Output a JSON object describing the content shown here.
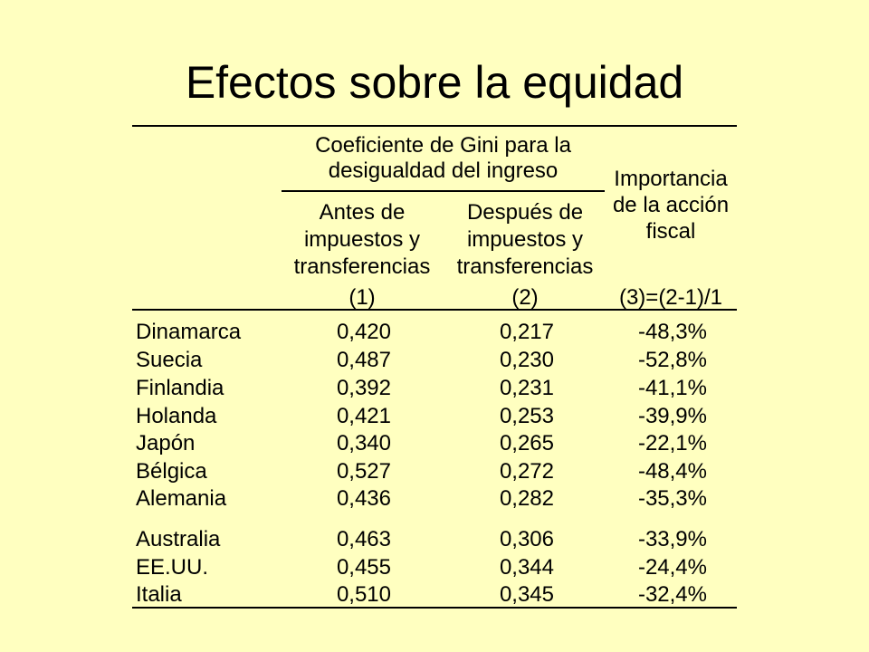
{
  "title": "Efectos sobre la equidad",
  "header": {
    "group_line1": "Coeficiente de Gini para la",
    "group_line2": "desigualdad del ingreso",
    "col1": [
      "Antes de",
      "impuestos y",
      "transferencias"
    ],
    "col2": [
      "Después de",
      "impuestos y",
      "transferencias"
    ],
    "col3": [
      "Importancia",
      "de la acción",
      "fiscal"
    ],
    "col1_num": "(1)",
    "col2_num": "(2)",
    "col3_num": "(3)=(2-1)/1"
  },
  "rows": [
    {
      "country": "Dinamarca",
      "before": "0,420",
      "after": "0,217",
      "effect": "-48,3%"
    },
    {
      "country": "Suecia",
      "before": "0,487",
      "after": "0,230",
      "effect": "-52,8%"
    },
    {
      "country": "Finlandia",
      "before": "0,392",
      "after": "0,231",
      "effect": "-41,1%"
    },
    {
      "country": "Holanda",
      "before": "0,421",
      "after": "0,253",
      "effect": "-39,9%"
    },
    {
      "country": "Japón",
      "before": "0,340",
      "after": "0,265",
      "effect": "-22,1%"
    },
    {
      "country": "Bélgica",
      "before": "0,527",
      "after": "0,272",
      "effect": "-48,4%"
    },
    {
      "country": "Alemania",
      "before": "0,436",
      "after": "0,282",
      "effect": "-35,3%"
    },
    {
      "country": "Australia",
      "before": "0,463",
      "after": "0,306",
      "effect": "-33,9%"
    },
    {
      "country": "EE.UU.",
      "before": "0,455",
      "after": "0,344",
      "effect": "-24,4%"
    },
    {
      "country": "Italia",
      "before": "0,510",
      "after": "0,345",
      "effect": "-32,4%"
    }
  ],
  "colors": {
    "background": "#FFFFC0",
    "text": "#000000"
  }
}
